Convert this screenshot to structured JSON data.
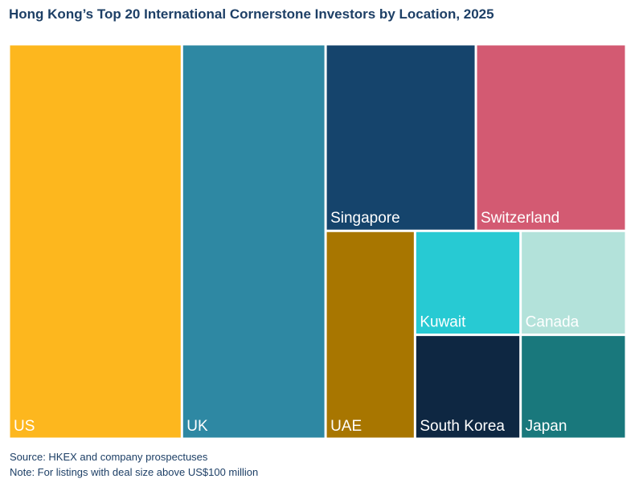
{
  "chart_data": {
    "type": "treemap",
    "title": "Hong Kong’s Top 20 International Cornerstone Investors by Location, 2025",
    "source": "Source: HKEX and company prospectuses",
    "note": "Note: For listings with deal size above US$100 million",
    "items": [
      {
        "label": "US",
        "value": 22.4,
        "color": "#fdb71e"
      },
      {
        "label": "UK",
        "value": 18.6,
        "color": "#2e88a3"
      },
      {
        "label": "Singapore",
        "value": 9.2,
        "color": "#15446c"
      },
      {
        "label": "Switzerland",
        "value": 9.2,
        "color": "#d35a72"
      },
      {
        "label": "UAE",
        "value": 6.1,
        "color": "#a87600"
      },
      {
        "label": "Kuwait",
        "value": 3.6,
        "color": "#27cad3"
      },
      {
        "label": "Canada",
        "value": 3.6,
        "color": "#b3e2da"
      },
      {
        "label": "South Korea",
        "value": 3.6,
        "color": "#0e2742"
      },
      {
        "label": "Japan",
        "value": 3.6,
        "color": "#19787c"
      }
    ]
  }
}
